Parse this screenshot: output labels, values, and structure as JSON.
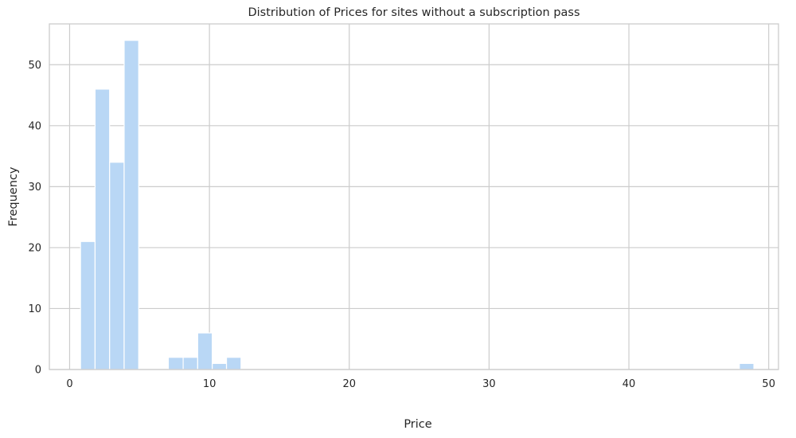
{
  "chart_data": {
    "type": "bar",
    "subtype": "histogram",
    "title": "Distribution of Prices for sites without a subscription pass",
    "xlabel": "Price",
    "ylabel": "Frequency",
    "xlim": [
      -1.45,
      50.7
    ],
    "ylim": [
      0,
      56.7
    ],
    "xticks": [
      0,
      10,
      20,
      30,
      40,
      50
    ],
    "yticks": [
      0,
      10,
      20,
      30,
      40,
      50
    ],
    "grid": true,
    "bar_color": "#b9d7f5",
    "bins": [
      {
        "x0": 0.78,
        "x1": 1.82,
        "count": 21
      },
      {
        "x0": 1.82,
        "x1": 2.86,
        "count": 46
      },
      {
        "x0": 2.86,
        "x1": 3.9,
        "count": 34
      },
      {
        "x0": 3.9,
        "x1": 4.94,
        "count": 54
      },
      {
        "x0": 7.06,
        "x1": 8.12,
        "count": 2
      },
      {
        "x0": 8.12,
        "x1": 9.16,
        "count": 2
      },
      {
        "x0": 9.16,
        "x1": 10.2,
        "count": 6
      },
      {
        "x0": 10.2,
        "x1": 11.22,
        "count": 1
      },
      {
        "x0": 11.22,
        "x1": 12.26,
        "count": 2
      },
      {
        "x0": 47.9,
        "x1": 48.94,
        "count": 1
      }
    ]
  }
}
